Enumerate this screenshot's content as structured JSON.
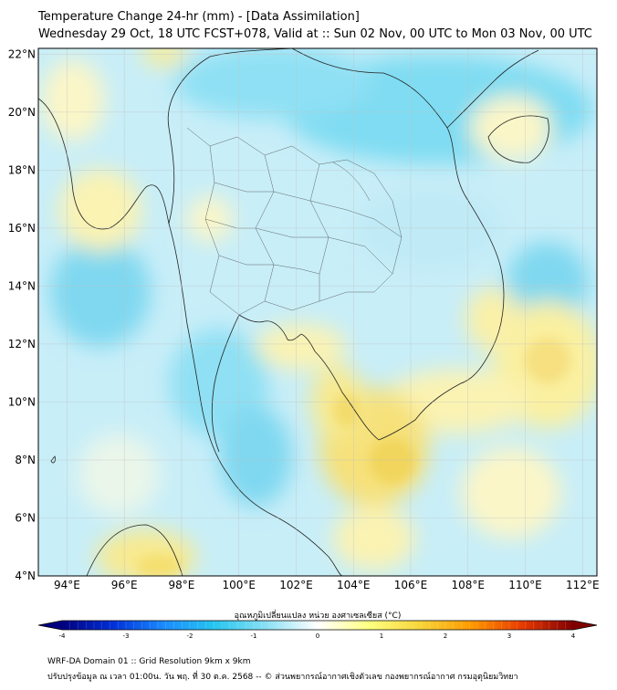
{
  "title": {
    "line1": "Temperature Change 24-hr (mm) - [Data Assimilation]",
    "line2": "Wednesday 29 Oct, 18 UTC FCST+078, Valid at :: Sun 02 Nov, 00 UTC to Mon 03 Nov, 00 UTC"
  },
  "map": {
    "lon_range": [
      93,
      112.5
    ],
    "lat_range": [
      4,
      22.2
    ],
    "lat_ticks": [
      "22°N",
      "20°N",
      "18°N",
      "16°N",
      "14°N",
      "12°N",
      "10°N",
      "8°N",
      "6°N",
      "4°N"
    ],
    "lon_ticks": [
      "94°E",
      "96°E",
      "98°E",
      "100°E",
      "102°E",
      "104°E",
      "106°E",
      "108°E",
      "110°E",
      "112°E"
    ],
    "grid": true
  },
  "colorbar": {
    "label": "อุณหภูมิเปลี่ยนแปลง หน่วย องศาเซลเซียส (°C)",
    "ticks": [
      "-4",
      "-3",
      "-2",
      "-1",
      "0",
      "1",
      "2",
      "3",
      "4"
    ],
    "range": [
      -4,
      4
    ],
    "extend": "both",
    "colors": [
      "#00007f",
      "#0030d8",
      "#1a8cff",
      "#27c6ef",
      "#8be1f5",
      "#ffffff",
      "#ffff80",
      "#f6d53a",
      "#ff9a00",
      "#e83a00",
      "#7f0000"
    ]
  },
  "footer": {
    "line1": "WRF-DA Domain 01 :: Grid Resolution 9km x 9km",
    "line2": "ปรับปรุงข้อมูล ณ เวลา 01:00น. วัน พฤ. ที่ 30 ต.ค. 2568 -- © ส่วนพยากรณ์อากาศเชิงตัวเลข กองพยากรณ์อากาศ กรมอุตุนิยมวิทยา"
  }
}
